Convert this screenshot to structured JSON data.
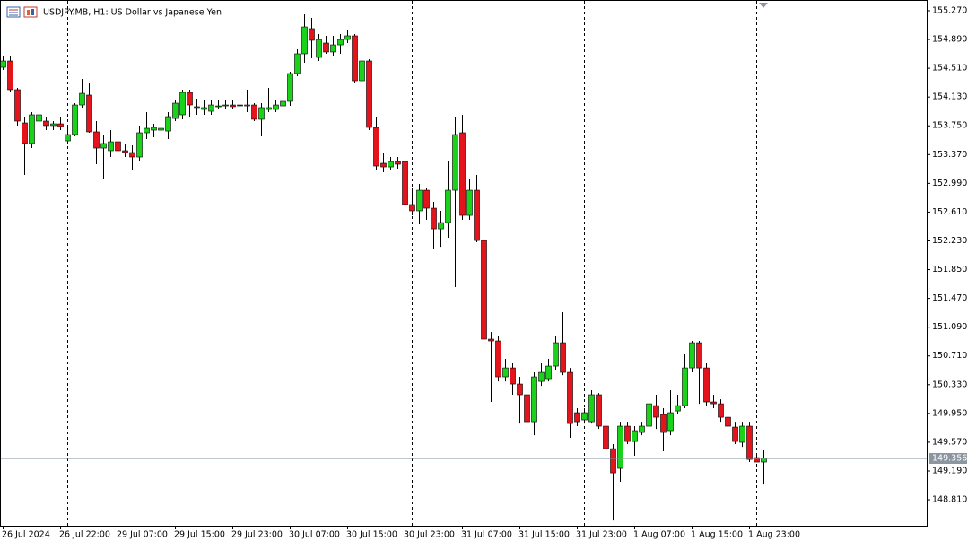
{
  "chart_data": {
    "type": "candlestick",
    "title": "USDJPY.MB, H1:  US Dollar vs Japanese Yen",
    "categories": [
      "26 Jul 2024",
      null,
      null,
      null,
      null,
      null,
      null,
      null,
      "26 Jul 22:00",
      null,
      null,
      null,
      null,
      null,
      null,
      null,
      "29 Jul 07:00",
      null,
      null,
      null,
      null,
      null,
      null,
      null,
      "29 Jul 15:00",
      null,
      null,
      null,
      null,
      null,
      null,
      null,
      "29 Jul 23:00",
      null,
      null,
      null,
      null,
      null,
      null,
      null,
      "30 Jul 07:00",
      null,
      null,
      null,
      null,
      null,
      null,
      null,
      "30 Jul 15:00",
      null,
      null,
      null,
      null,
      null,
      null,
      null,
      "30 Jul 23:00",
      null,
      null,
      null,
      null,
      null,
      null,
      null,
      "31 Jul 07:00",
      null,
      null,
      null,
      null,
      null,
      null,
      null,
      "31 Jul 15:00",
      null,
      null,
      null,
      null,
      null,
      null,
      null,
      "31 Jul 23:00",
      null,
      null,
      null,
      null,
      null,
      null,
      null,
      "1 Aug 07:00",
      null,
      null,
      null,
      null,
      null,
      null,
      null,
      "1 Aug 15:00",
      null,
      null,
      null,
      null,
      null,
      null,
      null,
      "1 Aug 23:00",
      null,
      null
    ],
    "open": [
      154.523,
      154.606,
      154.227,
      153.788,
      153.516,
      153.812,
      153.812,
      153.753,
      153.776,
      153.551,
      153.634,
      154.025,
      154.156,
      153.67,
      153.456,
      153.421,
      153.539,
      153.421,
      153.397,
      153.338,
      153.658,
      153.693,
      153.693,
      153.681,
      153.847,
      153.895,
      154.191,
      153.99,
      153.966,
      153.942,
      154.013,
      154.013,
      154.025,
      154.025,
      154.013,
      154.025,
      153.836,
      153.966,
      153.966,
      154.013,
      154.073,
      154.44,
      154.701,
      155.033,
      154.653,
      154.843,
      154.725,
      154.819,
      154.89,
      154.938,
      154.345,
      154.606,
      153.729,
      153.255,
      153.207,
      153.278,
      153.278,
      152.71,
      152.627,
      152.899,
      152.662,
      152.389,
      152.472,
      152.899,
      153.658,
      152.567,
      152.899,
      152.235,
      150.932,
      150.908,
      150.434,
      150.552,
      150.339,
      150.197,
      149.841,
      150.374,
      150.41,
      150.576,
      150.884,
      150.493,
      149.96,
      149.865,
      149.841,
      150.197,
      149.782,
      149.485,
      149.225,
      149.782,
      149.58,
      149.699,
      149.782,
      150.054,
      149.936,
      149.723,
      149.983,
      150.054,
      150.552,
      150.884,
      150.552,
      150.102,
      150.078,
      149.9,
      149.77,
      149.569,
      149.782,
      149.367,
      149.308
    ],
    "high": [
      154.677,
      154.677,
      154.25,
      153.871,
      153.93,
      153.93,
      153.871,
      153.812,
      153.871,
      153.753,
      154.049,
      154.369,
      154.322,
      153.812,
      153.634,
      153.693,
      153.634,
      153.516,
      153.492,
      153.753,
      153.93,
      153.776,
      153.895,
      153.93,
      154.084,
      154.227,
      154.227,
      154.108,
      154.084,
      154.084,
      154.084,
      154.084,
      154.084,
      154.108,
      154.227,
      154.049,
      154.049,
      154.25,
      154.084,
      154.132,
      154.464,
      154.76,
      155.222,
      155.175,
      154.962,
      154.938,
      154.938,
      154.962,
      155.021,
      154.962,
      154.642,
      154.63,
      153.871,
      153.397,
      153.338,
      153.338,
      153.302,
      152.923,
      152.982,
      152.923,
      152.745,
      152.627,
      153.278,
      153.871,
      153.895,
      153.041,
      153.101,
      152.449,
      151.026,
      150.967,
      150.671,
      150.612,
      150.434,
      150.374,
      150.493,
      150.612,
      150.671,
      150.967,
      151.287,
      150.552,
      150.019,
      150.019,
      150.256,
      150.22,
      149.841,
      149.545,
      149.841,
      149.841,
      149.782,
      149.841,
      150.374,
      150.197,
      150.019,
      150.256,
      150.197,
      150.73,
      150.908,
      150.908,
      150.612,
      150.197,
      150.137,
      149.96,
      149.841,
      149.841,
      149.841,
      149.426,
      149.462
    ],
    "low": [
      154.487,
      154.203,
      153.753,
      153.101,
      153.456,
      153.753,
      153.693,
      153.693,
      153.693,
      153.516,
      153.61,
      153.99,
      153.658,
      153.243,
      153.041,
      153.338,
      153.338,
      153.338,
      153.16,
      153.278,
      153.575,
      153.598,
      153.634,
      153.575,
      153.812,
      153.836,
      153.871,
      153.895,
      153.895,
      153.895,
      153.966,
      153.966,
      153.966,
      153.978,
      153.93,
      153.812,
      153.61,
      153.93,
      153.93,
      153.978,
      154.013,
      154.404,
      154.582,
      154.642,
      154.606,
      154.701,
      154.677,
      154.701,
      154.843,
      154.322,
      154.286,
      153.693,
      153.16,
      153.136,
      153.16,
      153.184,
      152.662,
      152.567,
      152.449,
      152.508,
      152.117,
      152.152,
      152.271,
      151.619,
      152.508,
      152.508,
      152.212,
      150.908,
      150.102,
      150.374,
      150.374,
      150.197,
      149.817,
      149.782,
      149.663,
      150.315,
      150.374,
      150.529,
      150.457,
      149.628,
      149.782,
      149.817,
      149.817,
      149.746,
      149.426,
      148.537,
      149.047,
      149.545,
      149.391,
      149.663,
      149.723,
      149.746,
      149.45,
      149.663,
      149.936,
      150.019,
      150.493,
      150.078,
      150.054,
      150.019,
      149.841,
      149.699,
      149.545,
      149.509,
      149.308,
      149.308,
      149.011
    ],
    "close": [
      154.606,
      154.227,
      153.812,
      153.516,
      153.895,
      153.895,
      153.753,
      153.776,
      153.741,
      153.634,
      154.025,
      154.179,
      153.67,
      153.456,
      153.516,
      153.539,
      153.421,
      153.397,
      153.338,
      153.658,
      153.717,
      153.729,
      153.717,
      153.871,
      154.049,
      154.191,
      154.025,
      154.002,
      153.99,
      154.025,
      154.013,
      154.025,
      154.002,
      154.013,
      154.025,
      153.836,
      153.99,
      153.99,
      154.025,
      154.073,
      154.44,
      154.701,
      155.056,
      154.879,
      154.89,
      154.725,
      154.819,
      154.89,
      154.938,
      154.345,
      154.606,
      153.729,
      153.219,
      153.207,
      153.278,
      153.243,
      152.71,
      152.627,
      152.899,
      152.662,
      152.389,
      152.472,
      152.899,
      153.634,
      152.567,
      152.899,
      152.235,
      150.932,
      150.908,
      150.434,
      150.552,
      150.339,
      150.197,
      149.841,
      150.434,
      150.493,
      150.576,
      150.884,
      150.493,
      149.817,
      149.841,
      149.96,
      150.197,
      149.782,
      149.485,
      149.165,
      149.782,
      149.58,
      149.723,
      149.782,
      150.078,
      149.9,
      149.699,
      149.96,
      150.054,
      150.552,
      150.884,
      150.552,
      150.102,
      150.078,
      149.9,
      149.782,
      149.58,
      149.782,
      149.343,
      149.308,
      149.356
    ],
    "bull_color": "#19d219",
    "bear_color": "#e3141c",
    "ylim": [
      148.467,
      155.412
    ],
    "yticks": [
      {
        "value": 155.27,
        "label": "155.270"
      },
      {
        "value": 154.89,
        "label": "154.890"
      },
      {
        "value": 154.51,
        "label": "154.510"
      },
      {
        "value": 154.13,
        "label": "154.130"
      },
      {
        "value": 153.75,
        "label": "153.750"
      },
      {
        "value": 153.37,
        "label": "153.370"
      },
      {
        "value": 152.99,
        "label": "152.990"
      },
      {
        "value": 152.61,
        "label": "152.610"
      },
      {
        "value": 152.23,
        "label": "152.230"
      },
      {
        "value": 151.85,
        "label": "151.850"
      },
      {
        "value": 151.47,
        "label": "151.470"
      },
      {
        "value": 151.09,
        "label": "151.090"
      },
      {
        "value": 150.71,
        "label": "150.710"
      },
      {
        "value": 150.33,
        "label": "150.330"
      },
      {
        "value": 149.95,
        "label": "149.950"
      },
      {
        "value": 149.57,
        "label": "149.570"
      },
      {
        "value": 149.19,
        "label": "149.190"
      },
      {
        "value": 148.81,
        "label": "148.810"
      }
    ],
    "last_price": 149.356
  }
}
